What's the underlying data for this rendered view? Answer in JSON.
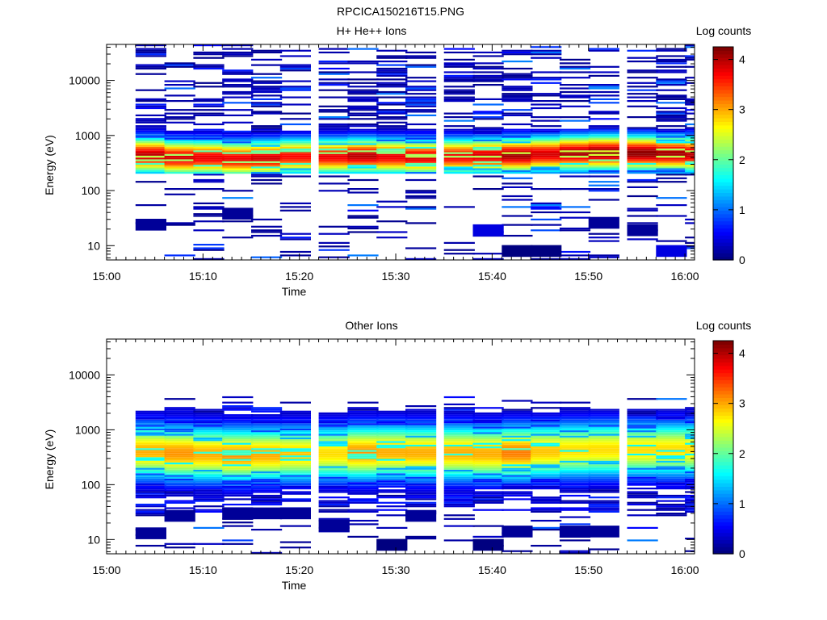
{
  "figure": {
    "title": "RPCICA150216T15.PNG"
  },
  "chart_data": [
    {
      "type": "heatmap",
      "title": "H+ He++ Ions",
      "xlabel": "Time",
      "ylabel": "Energy (eV)",
      "y_scale": "log",
      "ylim": [
        5.5,
        45000
      ],
      "x_ticks": [
        "15:00",
        "15:10",
        "15:20",
        "15:30",
        "15:40",
        "15:50",
        "16:00"
      ],
      "y_ticks": [
        "10",
        "100",
        "1000",
        "10000"
      ],
      "colorbar": {
        "title": "Log counts",
        "range": [
          0,
          4.25
        ],
        "ticks": [
          "0",
          "1",
          "2",
          "3",
          "4"
        ],
        "colormap": "jet"
      },
      "time_bins": [
        "15:03",
        "15:06",
        "15:09",
        "15:12",
        "15:15",
        "15:18",
        "15:22",
        "15:25",
        "15:28",
        "15:31",
        "15:35",
        "15:38",
        "15:41",
        "15:44",
        "15:47",
        "15:50",
        "15:54",
        "15:57",
        "16:00"
      ],
      "core_band": {
        "center_ev": [
          420,
          380,
          380,
          360,
          370,
          400,
          400,
          410,
          400,
          390,
          400,
          410,
          420,
          440,
          460,
          470,
          460,
          450,
          440
        ],
        "peak_log_counts": [
          4.0,
          3.9,
          3.8,
          3.8,
          3.9,
          3.7,
          3.8,
          4.0,
          3.8,
          3.9,
          3.8,
          3.9,
          4.1,
          3.9,
          4.1,
          4.2,
          4.2,
          4.1,
          4.0
        ],
        "low_ev": 200,
        "high_ev": 1300
      },
      "sparse_patches": [
        {
          "time": "15:03",
          "energy_ev": 24,
          "log_counts": 0.1
        },
        {
          "time": "15:12",
          "energy_ev": 38,
          "log_counts": 0.1
        },
        {
          "time": "15:38",
          "energy_ev": 19,
          "log_counts": 0.4
        },
        {
          "time": "15:41",
          "energy_ev": 8,
          "log_counts": 0.0
        },
        {
          "time": "15:44",
          "energy_ev": 8,
          "log_counts": 0.0
        },
        {
          "time": "15:50",
          "energy_ev": 26,
          "log_counts": 0.1
        },
        {
          "time": "15:54",
          "energy_ev": 19,
          "log_counts": 0.1
        },
        {
          "time": "15:57",
          "energy_ev": 8,
          "log_counts": 0.4
        }
      ]
    },
    {
      "type": "heatmap",
      "title": "Other Ions",
      "xlabel": "Time",
      "ylabel": "Energy (eV)",
      "y_scale": "log",
      "ylim": [
        5.5,
        45000
      ],
      "x_ticks": [
        "15:00",
        "15:10",
        "15:20",
        "15:30",
        "15:40",
        "15:50",
        "16:00"
      ],
      "y_ticks": [
        "10",
        "100",
        "1000",
        "10000"
      ],
      "colorbar": {
        "title": "Log counts",
        "range": [
          0,
          4.25
        ],
        "ticks": [
          "0",
          "1",
          "2",
          "3",
          "4"
        ],
        "colormap": "jet"
      },
      "time_bins": [
        "15:03",
        "15:06",
        "15:09",
        "15:12",
        "15:15",
        "15:18",
        "15:22",
        "15:25",
        "15:28",
        "15:31",
        "15:35",
        "15:38",
        "15:41",
        "15:44",
        "15:47",
        "15:50",
        "15:54",
        "15:57",
        "16:00"
      ],
      "core_band": {
        "center_ev": [
          390,
          360,
          350,
          330,
          340,
          350,
          360,
          370,
          380,
          370,
          370,
          360,
          370,
          390,
          410,
          420,
          420,
          420,
          420
        ],
        "peak_log_counts": [
          3.0,
          3.1,
          3.0,
          3.1,
          3.0,
          2.9,
          2.8,
          3.1,
          3.0,
          3.0,
          3.0,
          3.0,
          3.2,
          2.9,
          2.8,
          2.8,
          2.8,
          2.8,
          2.8
        ],
        "low_ev": 30,
        "high_ev": 2500
      },
      "sparse_patches": [
        {
          "time": "15:03",
          "energy_ev": 13,
          "log_counts": 0.1
        },
        {
          "time": "15:06",
          "energy_ev": 27,
          "log_counts": 0.1
        },
        {
          "time": "15:12",
          "energy_ev": 30,
          "log_counts": 0.1
        },
        {
          "time": "15:15",
          "energy_ev": 30,
          "log_counts": 0.1
        },
        {
          "time": "15:18",
          "energy_ev": 30,
          "log_counts": 0.1
        },
        {
          "time": "15:22",
          "energy_ev": 18,
          "log_counts": 0.1
        },
        {
          "time": "15:28",
          "energy_ev": 8,
          "log_counts": 0.0
        },
        {
          "time": "15:31",
          "energy_ev": 27,
          "log_counts": 0.1
        },
        {
          "time": "15:38",
          "energy_ev": 8,
          "log_counts": 0.0
        },
        {
          "time": "15:41",
          "energy_ev": 14,
          "log_counts": 0.1
        },
        {
          "time": "15:47",
          "energy_ev": 14,
          "log_counts": 0.1
        },
        {
          "time": "15:50",
          "energy_ev": 14,
          "log_counts": 0.1
        }
      ]
    }
  ]
}
